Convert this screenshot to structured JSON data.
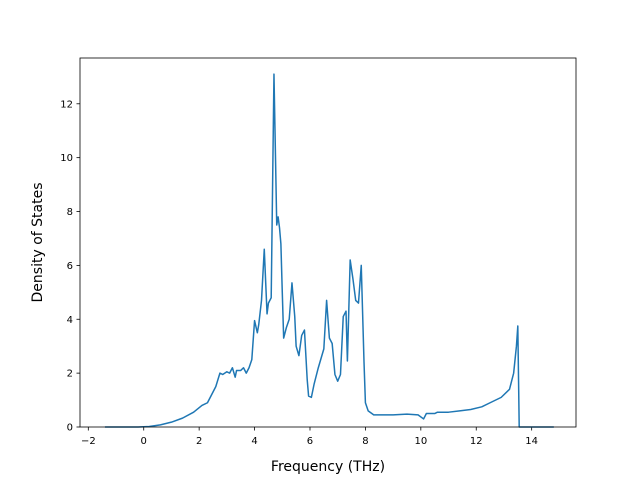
{
  "chart_data": {
    "type": "line",
    "title": "",
    "xlabel": "Frequency (THz)",
    "ylabel": "Density of States",
    "xlim": [
      -2.3,
      15.6
    ],
    "ylim": [
      0,
      13.7
    ],
    "x_ticks": [
      -2,
      0,
      2,
      4,
      6,
      8,
      10,
      12,
      14
    ],
    "x_tick_labels": [
      "−2",
      "0",
      "2",
      "4",
      "6",
      "8",
      "10",
      "12",
      "14"
    ],
    "y_ticks": [
      0,
      2,
      4,
      6,
      8,
      10,
      12
    ],
    "y_tick_labels": [
      "0",
      "2",
      "4",
      "6",
      "8",
      "10",
      "12"
    ],
    "grid": false,
    "legend": "none",
    "series": [
      {
        "color": "#1f77b4",
        "x": [
          -1.4,
          -0.8,
          -0.2,
          0.2,
          0.6,
          1.0,
          1.4,
          1.8,
          2.1,
          2.3,
          2.6,
          2.75,
          2.85,
          3.0,
          3.1,
          3.2,
          3.3,
          3.35,
          3.5,
          3.6,
          3.7,
          3.8,
          3.9,
          4.0,
          4.1,
          4.15,
          4.25,
          4.35,
          4.45,
          4.5,
          4.6,
          4.7,
          4.8,
          4.85,
          4.9,
          4.95,
          5.0,
          5.05,
          5.15,
          5.25,
          5.35,
          5.45,
          5.5,
          5.6,
          5.7,
          5.8,
          5.9,
          5.95,
          6.05,
          6.15,
          6.3,
          6.5,
          6.6,
          6.7,
          6.8,
          6.9,
          7.0,
          7.1,
          7.2,
          7.3,
          7.35,
          7.45,
          7.55,
          7.65,
          7.75,
          7.85,
          7.95,
          8.0,
          8.1,
          8.3,
          8.6,
          9.0,
          9.5,
          9.9,
          10.1,
          10.2,
          10.5,
          10.6,
          11.0,
          11.4,
          11.8,
          12.2,
          12.5,
          12.9,
          13.2,
          13.35,
          13.45,
          13.5,
          13.55,
          13.8,
          14.2,
          14.8
        ],
        "y": [
          0,
          0,
          0,
          0.02,
          0.08,
          0.18,
          0.33,
          0.55,
          0.8,
          0.9,
          1.5,
          2.0,
          1.95,
          2.05,
          2.0,
          2.2,
          1.85,
          2.1,
          2.1,
          2.2,
          2.0,
          2.2,
          2.5,
          3.95,
          3.5,
          3.8,
          4.7,
          6.6,
          4.2,
          4.6,
          4.8,
          13.1,
          7.5,
          7.8,
          7.4,
          6.8,
          5.0,
          3.3,
          3.7,
          4.0,
          5.35,
          4.1,
          3.0,
          2.65,
          3.4,
          3.6,
          1.75,
          1.15,
          1.1,
          1.6,
          2.2,
          2.9,
          4.7,
          3.3,
          3.1,
          1.95,
          1.7,
          1.95,
          4.1,
          4.3,
          2.45,
          6.2,
          5.5,
          4.7,
          4.6,
          6.0,
          2.4,
          0.9,
          0.6,
          0.45,
          0.45,
          0.45,
          0.48,
          0.45,
          0.3,
          0.5,
          0.5,
          0.55,
          0.55,
          0.6,
          0.65,
          0.75,
          0.9,
          1.1,
          1.4,
          2.0,
          3.0,
          3.75,
          0,
          0,
          0,
          0
        ]
      }
    ]
  }
}
